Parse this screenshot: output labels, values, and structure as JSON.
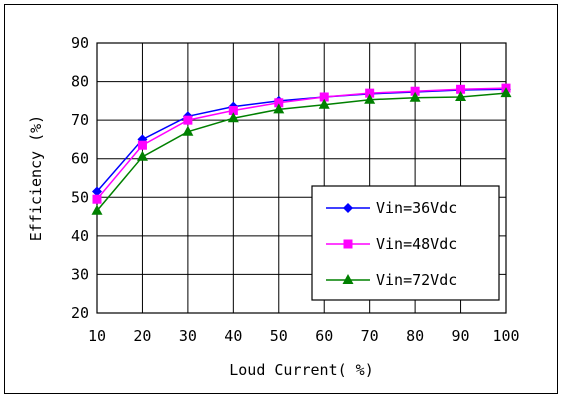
{
  "chart_data": {
    "type": "line",
    "title": "",
    "xlabel": "Loud Current( %)",
    "ylabel": "Efficiency (%)",
    "x": [
      10,
      20,
      30,
      40,
      50,
      60,
      70,
      80,
      90,
      100
    ],
    "xlim": [
      10,
      100
    ],
    "ylim": [
      20,
      90
    ],
    "x_ticks": [
      "10",
      "20",
      "30",
      "40",
      "50",
      "60",
      "70",
      "80",
      "90",
      "100"
    ],
    "y_ticks": [
      "20",
      "30",
      "40",
      "50",
      "60",
      "70",
      "80",
      "90"
    ],
    "grid": true,
    "legend_position": "lower-right",
    "series": [
      {
        "name": "Vin=36Vdc",
        "color": "#0000ff",
        "marker": "diamond",
        "values": [
          51.5,
          65,
          71,
          73.5,
          75,
          76,
          76.8,
          77.3,
          77.8,
          78
        ]
      },
      {
        "name": "Vin=48Vdc",
        "color": "#ff00ff",
        "marker": "square",
        "values": [
          49.5,
          63.5,
          70,
          72.5,
          74.5,
          76,
          77,
          77.5,
          78,
          78.3
        ]
      },
      {
        "name": "Vin=72Vdc",
        "color": "#008000",
        "marker": "triangle",
        "values": [
          46.5,
          60.5,
          67,
          70.5,
          72.8,
          74,
          75.3,
          75.8,
          76,
          77
        ]
      }
    ]
  }
}
